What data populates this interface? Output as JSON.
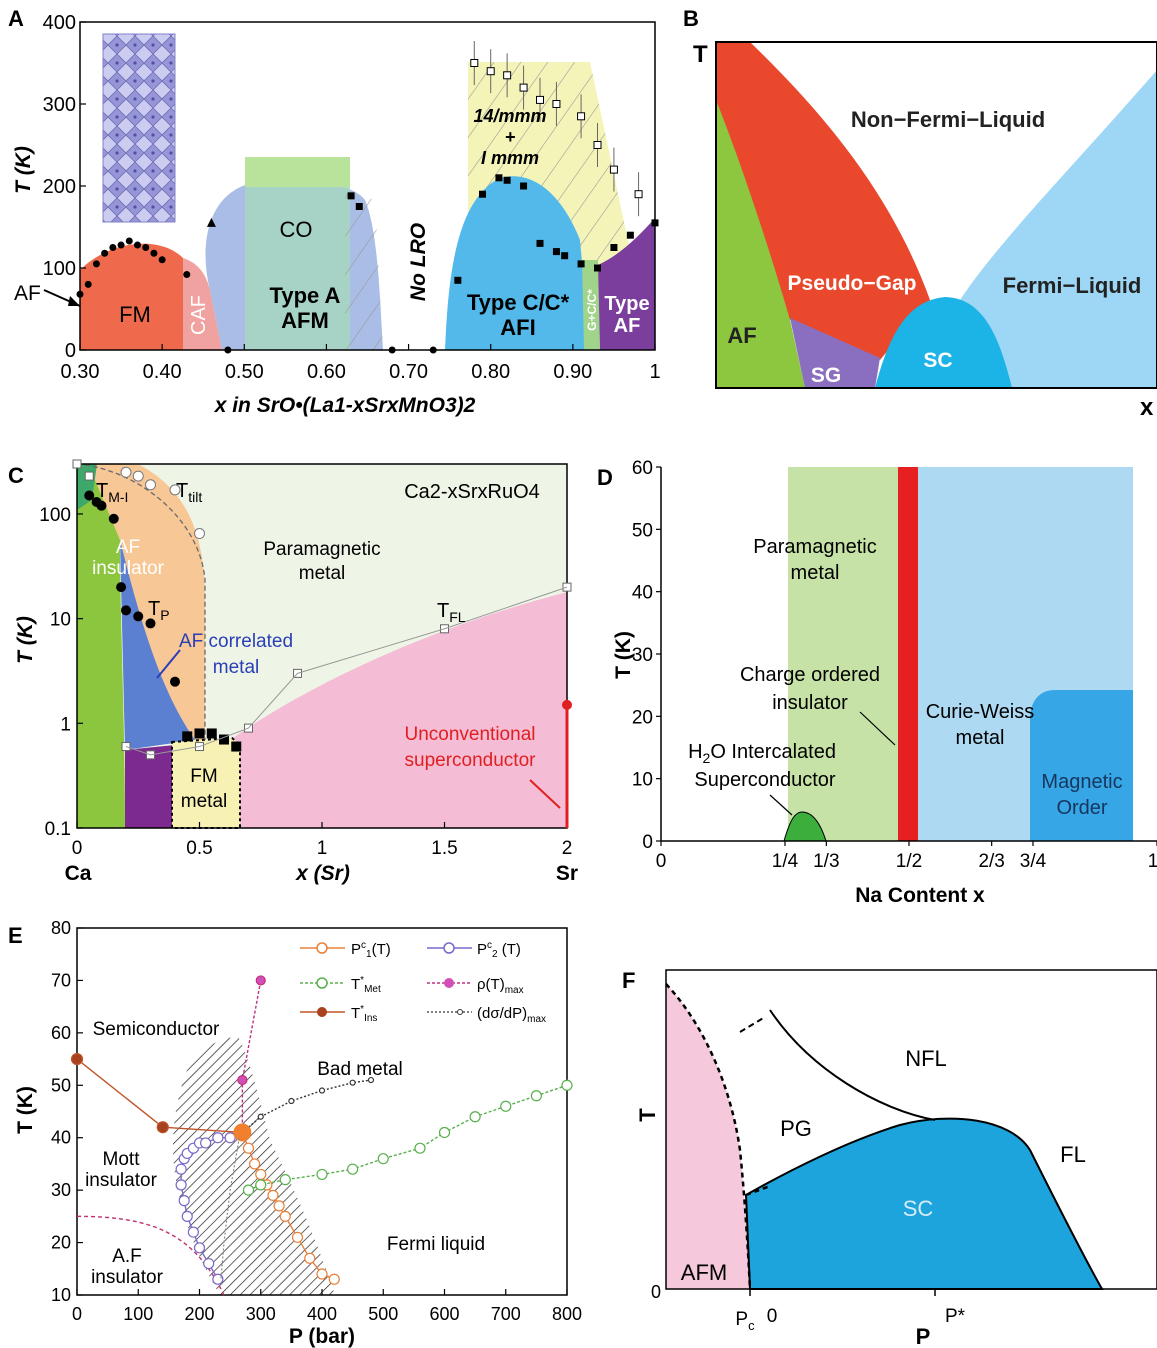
{
  "panels": {
    "A": {
      "letter": "A"
    },
    "B": {
      "letter": "B"
    },
    "C": {
      "letter": "C"
    },
    "D": {
      "letter": "D"
    },
    "E": {
      "letter": "E"
    },
    "F": {
      "letter": "F"
    }
  },
  "chart_data": [
    {
      "panel": "A",
      "type": "scatter",
      "xlabel": "x in SrO•(La1-xSrxMnO3)2",
      "ylabel": "T (K)",
      "xlim": [
        0.3,
        1.0
      ],
      "ylim": [
        0,
        400
      ],
      "x_ticks": [
        "0.30",
        "0.40",
        "0.50",
        "0.60",
        "0.70",
        "0.80",
        "0.90",
        "1"
      ],
      "y_ticks": [
        "0",
        "100",
        "200",
        "300",
        "400"
      ],
      "regions": [
        "FM",
        "CAF",
        "CO",
        "Type A AFM",
        "No LRO",
        "Type C/C* AFI",
        "G+C/C*",
        "Type AF",
        "14/mmm + I mmm"
      ],
      "annotations": [
        "AF"
      ],
      "series": [
        {
          "marker": "filled-circle",
          "x": [
            0.3,
            0.31,
            0.32,
            0.33,
            0.34,
            0.35,
            0.36,
            0.37,
            0.38,
            0.39,
            0.4,
            0.43,
            0.48,
            0.68,
            0.73
          ],
          "y": [
            68,
            80,
            105,
            118,
            125,
            128,
            133,
            128,
            125,
            118,
            110,
            92,
            0,
            0,
            0
          ]
        },
        {
          "marker": "filled-square",
          "x": [
            0.63,
            0.64,
            0.76,
            0.79,
            0.81,
            0.82,
            0.84,
            0.86,
            0.88,
            0.89,
            0.91,
            0.93,
            0.95,
            0.97,
            1.0
          ],
          "y": [
            188,
            175,
            85,
            190,
            210,
            207,
            200,
            130,
            120,
            115,
            105,
            100,
            125,
            140,
            155
          ]
        },
        {
          "marker": "open-square",
          "x": [
            0.78,
            0.8,
            0.82,
            0.84,
            0.86,
            0.88,
            0.91,
            0.93,
            0.95,
            0.98
          ],
          "y": [
            350,
            340,
            335,
            320,
            305,
            300,
            285,
            250,
            220,
            190
          ]
        },
        {
          "marker": "triangle",
          "x": [
            0.46
          ],
          "y": [
            155
          ]
        }
      ]
    },
    {
      "panel": "B",
      "type": "area",
      "xlabel": "x",
      "ylabel": "T",
      "regions": [
        "Non−Fermi−Liquid",
        "Pseudo−Gap",
        "Fermi−Liquid",
        "AF",
        "SG",
        "SC"
      ]
    },
    {
      "panel": "C",
      "type": "scatter",
      "title": "Ca2-xSrxRuO4",
      "xlabel": "x (Sr)",
      "ylabel": "T (K)",
      "x_end_labels": [
        "Ca",
        "Sr"
      ],
      "xlim": [
        0,
        2
      ],
      "ylim": [
        0.1,
        300
      ],
      "y_scale": "log",
      "x_ticks": [
        "0",
        "0.5",
        "1",
        "1.5",
        "2"
      ],
      "y_ticks": [
        "0.1",
        "1",
        "10",
        "100"
      ],
      "regions": [
        "AF insulator",
        "Paramagnetic metal",
        "AF correlated metal",
        "FM metal",
        "Unconventional superconductor"
      ],
      "annotations": [
        "TM-I",
        "Ttilt",
        "TP",
        "TFL"
      ],
      "series": [
        {
          "name": "TM-I",
          "marker": "open-square",
          "x": [
            0.0,
            0.05
          ],
          "y": [
            300,
            230
          ]
        },
        {
          "name": "Ttilt",
          "marker": "open-circle",
          "x": [
            0.2,
            0.25,
            0.3,
            0.4,
            0.5
          ],
          "y": [
            250,
            230,
            190,
            170,
            65
          ]
        },
        {
          "name": "TP",
          "marker": "filled-circle",
          "x": [
            0.05,
            0.08,
            0.1,
            0.15,
            0.18,
            0.2,
            0.25,
            0.3,
            0.4
          ],
          "y": [
            150,
            130,
            120,
            90,
            20,
            12,
            10.5,
            9,
            2.5
          ]
        },
        {
          "name": "TFL",
          "marker": "open-square",
          "x": [
            0.2,
            0.3,
            0.5,
            0.7,
            0.9,
            1.5,
            2.0
          ],
          "y": [
            0.6,
            0.5,
            0.6,
            0.9,
            3.0,
            8.0,
            20.0
          ]
        },
        {
          "name": "FM",
          "marker": "filled-square",
          "x": [
            0.45,
            0.5,
            0.55,
            0.6,
            0.65
          ],
          "y": [
            0.75,
            0.8,
            0.8,
            0.7,
            0.6
          ]
        },
        {
          "name": "Tc",
          "marker": "filled-circle-red",
          "x": [
            2.0
          ],
          "y": [
            1.5
          ]
        }
      ]
    },
    {
      "panel": "D",
      "type": "area",
      "xlabel": "Na Content x",
      "ylabel": "T (K)",
      "xlim": [
        0,
        1
      ],
      "ylim": [
        0,
        60
      ],
      "x_ticks": [
        "0",
        "1/4",
        "1/3",
        "1/2",
        "2/3",
        "3/4",
        "1"
      ],
      "y_ticks": [
        "0",
        "10",
        "20",
        "30",
        "40",
        "50",
        "60"
      ],
      "regions": [
        "Paramagnetic metal",
        "Charge ordered insulator",
        "Curie-Weiss metal",
        "H2O Intercalated Superconductor",
        "Magnetic Order"
      ]
    },
    {
      "panel": "E",
      "type": "line",
      "xlabel": "P (bar)",
      "ylabel": "T (K)",
      "xlim": [
        0,
        800
      ],
      "ylim": [
        10,
        80
      ],
      "x_ticks": [
        "0",
        "100",
        "200",
        "300",
        "400",
        "500",
        "600",
        "700",
        "800"
      ],
      "y_ticks": [
        "10",
        "20",
        "30",
        "40",
        "50",
        "60",
        "70",
        "80"
      ],
      "regions": [
        "Semiconductor",
        "Bad metal",
        "Mott insulator",
        "A.F insulator",
        "Fermi liquid"
      ],
      "series": [
        {
          "name": "Pc1(T)",
          "x": [
            270,
            280,
            290,
            300,
            310,
            320,
            330,
            340,
            360,
            380,
            400,
            420
          ],
          "y": [
            41,
            38,
            35,
            33,
            31,
            29,
            27,
            25,
            21,
            17,
            14,
            13
          ]
        },
        {
          "name": "Pc2(T)",
          "x": [
            230,
            215,
            200,
            190,
            180,
            175,
            170,
            170,
            175,
            180,
            190,
            200,
            210,
            230,
            250,
            265
          ],
          "y": [
            13,
            16,
            19,
            22,
            25,
            28,
            31,
            34,
            36,
            37,
            38,
            39,
            39,
            40,
            40,
            41
          ]
        },
        {
          "name": "T*Met",
          "x": [
            280,
            300,
            340,
            400,
            450,
            500,
            560,
            600,
            650,
            700,
            750,
            800
          ],
          "y": [
            30,
            31,
            32,
            33,
            34,
            36,
            38,
            41,
            44,
            46,
            48,
            50
          ]
        },
        {
          "name": "ρ(T)max",
          "x": [
            270,
            270,
            300
          ],
          "y": [
            41,
            51,
            70
          ]
        },
        {
          "name": "T*Ins",
          "x": [
            0,
            140,
            270
          ],
          "y": [
            55,
            42,
            41
          ]
        },
        {
          "name": "(dσ/dP)max",
          "x": [
            270,
            300,
            350,
            400,
            450,
            480
          ],
          "y": [
            41,
            44,
            47,
            49,
            50.5,
            51
          ]
        }
      ]
    },
    {
      "panel": "F",
      "type": "area",
      "xlabel": "P",
      "ylabel": "T",
      "x_ticks": [
        "Pc",
        "0",
        "P*"
      ],
      "y_ticks": [
        "0"
      ],
      "regions": [
        "NFL",
        "PG",
        "FL",
        "SC",
        "AFM"
      ]
    }
  ]
}
